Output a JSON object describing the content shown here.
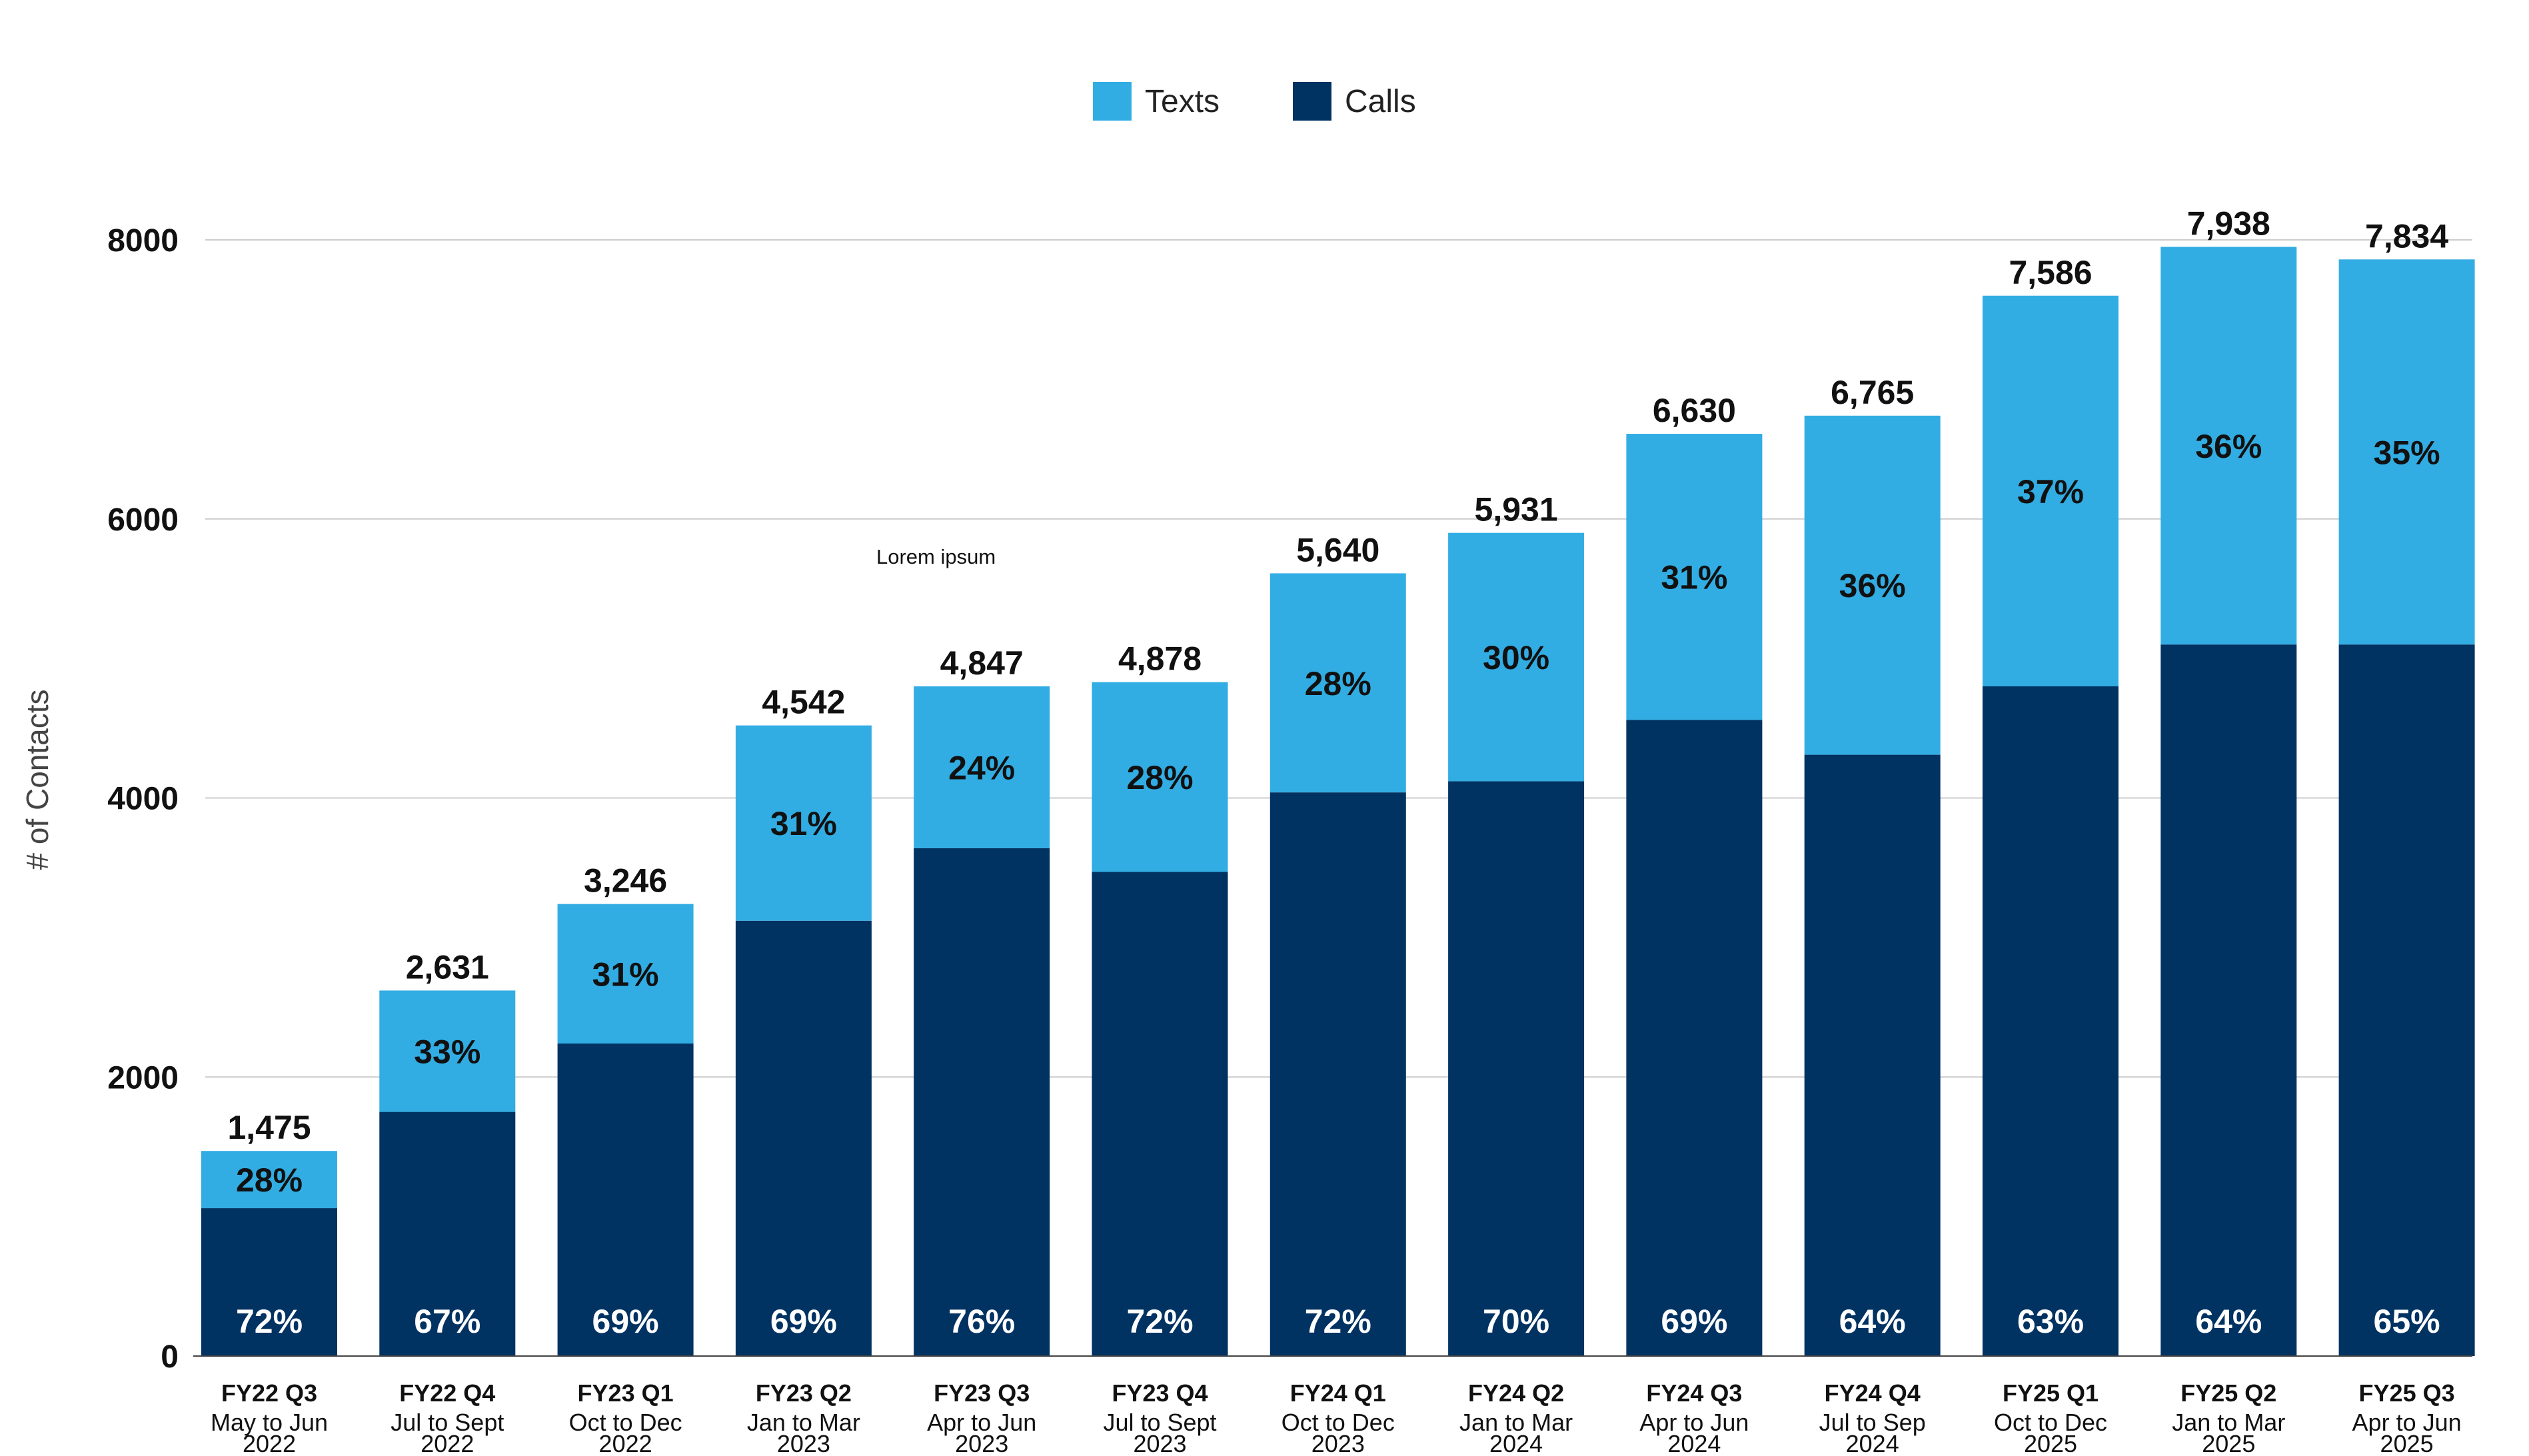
{
  "chart_data": {
    "type": "bar",
    "stacked": true,
    "title": "",
    "xlabel": "",
    "ylabel": "# of Contacts",
    "ylim": [
      0,
      8000
    ],
    "yticks": [
      "0",
      "2000",
      "4000",
      "6000",
      "8000"
    ],
    "grid": true,
    "legend_position": "top-center",
    "annotation": "Lorem ipsum",
    "categories": [
      {
        "quarter": "FY22 Q3",
        "range": "May to Jun",
        "year": "2022"
      },
      {
        "quarter": "FY22 Q4",
        "range": "Jul to Sept",
        "year": "2022"
      },
      {
        "quarter": "FY23 Q1",
        "range": "Oct to Dec",
        "year": "2022"
      },
      {
        "quarter": "FY23 Q2",
        "range": "Jan to Mar",
        "year": "2023"
      },
      {
        "quarter": "FY23 Q3",
        "range": "Apr to Jun",
        "year": "2023"
      },
      {
        "quarter": "FY23 Q4",
        "range": "Jul to Sept",
        "year": "2023"
      },
      {
        "quarter": "FY24 Q1",
        "range": "Oct to Dec",
        "year": "2023"
      },
      {
        "quarter": "FY24 Q2",
        "range": "Jan to Mar",
        "year": "2024"
      },
      {
        "quarter": "FY24 Q3",
        "range": "Apr to Jun",
        "year": "2024"
      },
      {
        "quarter": "FY24 Q4",
        "range": "Jul to Sep",
        "year": "2024"
      },
      {
        "quarter": "FY25 Q1",
        "range": "Oct to Dec",
        "year": "2025"
      },
      {
        "quarter": "FY25 Q2",
        "range": "Jan to Mar",
        "year": "2025"
      },
      {
        "quarter": "FY25 Q3",
        "range": "Apr to Jun",
        "year": "2025"
      }
    ],
    "totals": [
      "1,475",
      "2,631",
      "3,246",
      "4,542",
      "4,847",
      "4,878",
      "5,640",
      "5,931",
      "6,630",
      "6,765",
      "7,586",
      "7,938",
      "7,834"
    ],
    "series": [
      {
        "name": "Calls",
        "color": "#003262",
        "values": [
          1060,
          1750,
          2240,
          3120,
          3640,
          3470,
          4040,
          4120,
          4560,
          4310,
          4800,
          5100,
          5100
        ],
        "percent_labels": [
          "72%",
          "67%",
          "69%",
          "69%",
          "76%",
          "72%",
          "72%",
          "70%",
          "69%",
          "64%",
          "63%",
          "64%",
          "65%"
        ]
      },
      {
        "name": "Texts",
        "color": "#32ADE3",
        "values": [
          410,
          870,
          1000,
          1400,
          1160,
          1360,
          1570,
          1780,
          2050,
          2430,
          2800,
          2850,
          2760
        ],
        "percent_labels": [
          "28%",
          "33%",
          "31%",
          "31%",
          "24%",
          "28%",
          "28%",
          "30%",
          "31%",
          "36%",
          "37%",
          "36%",
          "35%"
        ]
      }
    ],
    "legend": [
      {
        "name": "Texts",
        "color": "#32ADE3"
      },
      {
        "name": "Calls",
        "color": "#003262"
      }
    ]
  }
}
